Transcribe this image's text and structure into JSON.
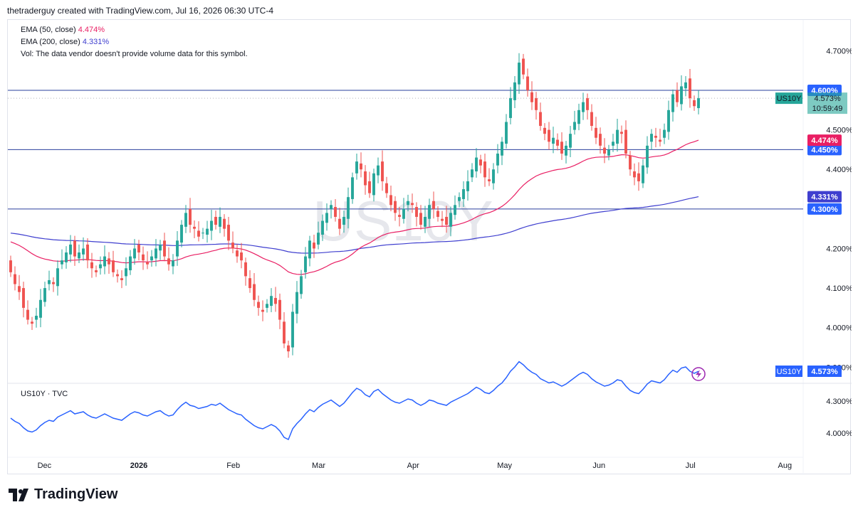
{
  "header": {
    "text": "thetraderguy created with TradingView.com, Jul 16, 2026 06:30 UTC-4"
  },
  "legend": {
    "ema50_label": "EMA (50, close)",
    "ema50_value": "4.474%",
    "ema200_label": "EMA (200, close)",
    "ema200_value": "4.331%",
    "vol_text": "Vol: The data vendor doesn't provide volume data for this symbol."
  },
  "watermark": "US10Y",
  "lower_pane": {
    "title": "US10Y · TVC",
    "tick_4300": "4.300%",
    "tick_4000": "4.000%",
    "symbol": "US10Y",
    "value": "4.573%"
  },
  "price_tag": {
    "symbol": "US10Y",
    "value": "4.573%",
    "countdown": "10:59:49"
  },
  "hlines": [
    {
      "value": 4.6,
      "label": "4.600%"
    },
    {
      "value": 4.45,
      "label": "4.450%"
    },
    {
      "value": 4.3,
      "label": "4.300%"
    }
  ],
  "ema_tags": [
    {
      "value": 4.474,
      "label": "4.474%",
      "color": "#e91e63"
    },
    {
      "value": 4.331,
      "label": "4.331%",
      "color": "#3f3fcf"
    }
  ],
  "footer": {
    "brand": "TradingView"
  },
  "colors": {
    "up": "#26a69a",
    "down": "#ef5350",
    "ema50": "#e91e63",
    "ema200": "#3f3fcf",
    "line": "#2962ff",
    "hline": "#2a3f9d"
  },
  "chart_data": {
    "type": "candlestick",
    "title": "US10Y",
    "ylim": [
      3.87,
      4.76
    ],
    "y_ticks": [
      "4.700%",
      "4.500%",
      "4.400%",
      "4.200%",
      "4.100%",
      "4.000%",
      "3.900%"
    ],
    "y_tick_values": [
      4.7,
      4.5,
      4.4,
      4.2,
      4.1,
      4.0,
      3.9
    ],
    "x_labels": [
      {
        "label": "Dec",
        "date": "2025-12-01",
        "bold": false
      },
      {
        "label": "2026",
        "date": "2026-01-01",
        "bold": true
      },
      {
        "label": "Feb",
        "date": "2026-02-01",
        "bold": false
      },
      {
        "label": "Mar",
        "date": "2026-03-01",
        "bold": false
      },
      {
        "label": "Apr",
        "date": "2026-04-01",
        "bold": false
      },
      {
        "label": "May",
        "date": "2026-05-01",
        "bold": false
      },
      {
        "label": "Jun",
        "date": "2026-06-01",
        "bold": false
      },
      {
        "label": "Jul",
        "date": "2026-07-01",
        "bold": false
      },
      {
        "label": "Aug",
        "date": "2026-08-01",
        "bold": false
      }
    ],
    "x_start": "2025-11-19",
    "x_end": "2026-08-07",
    "closes": [
      4.14,
      4.11,
      4.09,
      4.05,
      4.02,
      4.01,
      4.03,
      4.07,
      4.1,
      4.12,
      4.11,
      4.15,
      4.17,
      4.19,
      4.21,
      4.18,
      4.19,
      4.2,
      4.17,
      4.15,
      4.14,
      4.16,
      4.18,
      4.16,
      4.14,
      4.13,
      4.12,
      4.15,
      4.18,
      4.2,
      4.19,
      4.17,
      4.16,
      4.18,
      4.2,
      4.21,
      4.18,
      4.16,
      4.17,
      4.22,
      4.26,
      4.29,
      4.26,
      4.25,
      4.23,
      4.24,
      4.25,
      4.27,
      4.26,
      4.28,
      4.25,
      4.22,
      4.2,
      4.18,
      4.17,
      4.13,
      4.1,
      4.07,
      4.05,
      4.04,
      4.06,
      4.08,
      4.06,
      4.02,
      3.96,
      3.94,
      4.04,
      4.09,
      4.13,
      4.18,
      4.22,
      4.2,
      4.24,
      4.27,
      4.29,
      4.31,
      4.28,
      4.25,
      4.28,
      4.33,
      4.38,
      4.42,
      4.4,
      4.36,
      4.34,
      4.39,
      4.41,
      4.37,
      4.34,
      4.31,
      4.29,
      4.28,
      4.3,
      4.32,
      4.31,
      4.28,
      4.26,
      4.28,
      4.31,
      4.3,
      4.28,
      4.27,
      4.26,
      4.29,
      4.31,
      4.33,
      4.35,
      4.37,
      4.4,
      4.43,
      4.41,
      4.38,
      4.37,
      4.4,
      4.44,
      4.47,
      4.52,
      4.58,
      4.62,
      4.67,
      4.64,
      4.6,
      4.57,
      4.55,
      4.51,
      4.49,
      4.47,
      4.48,
      4.46,
      4.44,
      4.46,
      4.49,
      4.52,
      4.55,
      4.57,
      4.55,
      4.51,
      4.48,
      4.46,
      4.44,
      4.45,
      4.47,
      4.5,
      4.49,
      4.44,
      4.4,
      4.38,
      4.37,
      4.41,
      4.46,
      4.49,
      4.48,
      4.47,
      4.5,
      4.55,
      4.59,
      4.57,
      4.61,
      4.62,
      4.58,
      4.56,
      4.58
    ],
    "ema50_end": 4.474,
    "ema200_end": 4.331,
    "lower_ylim": [
      3.82,
      4.42
    ],
    "lower_y_ticks": [
      4.3,
      4.0
    ]
  }
}
